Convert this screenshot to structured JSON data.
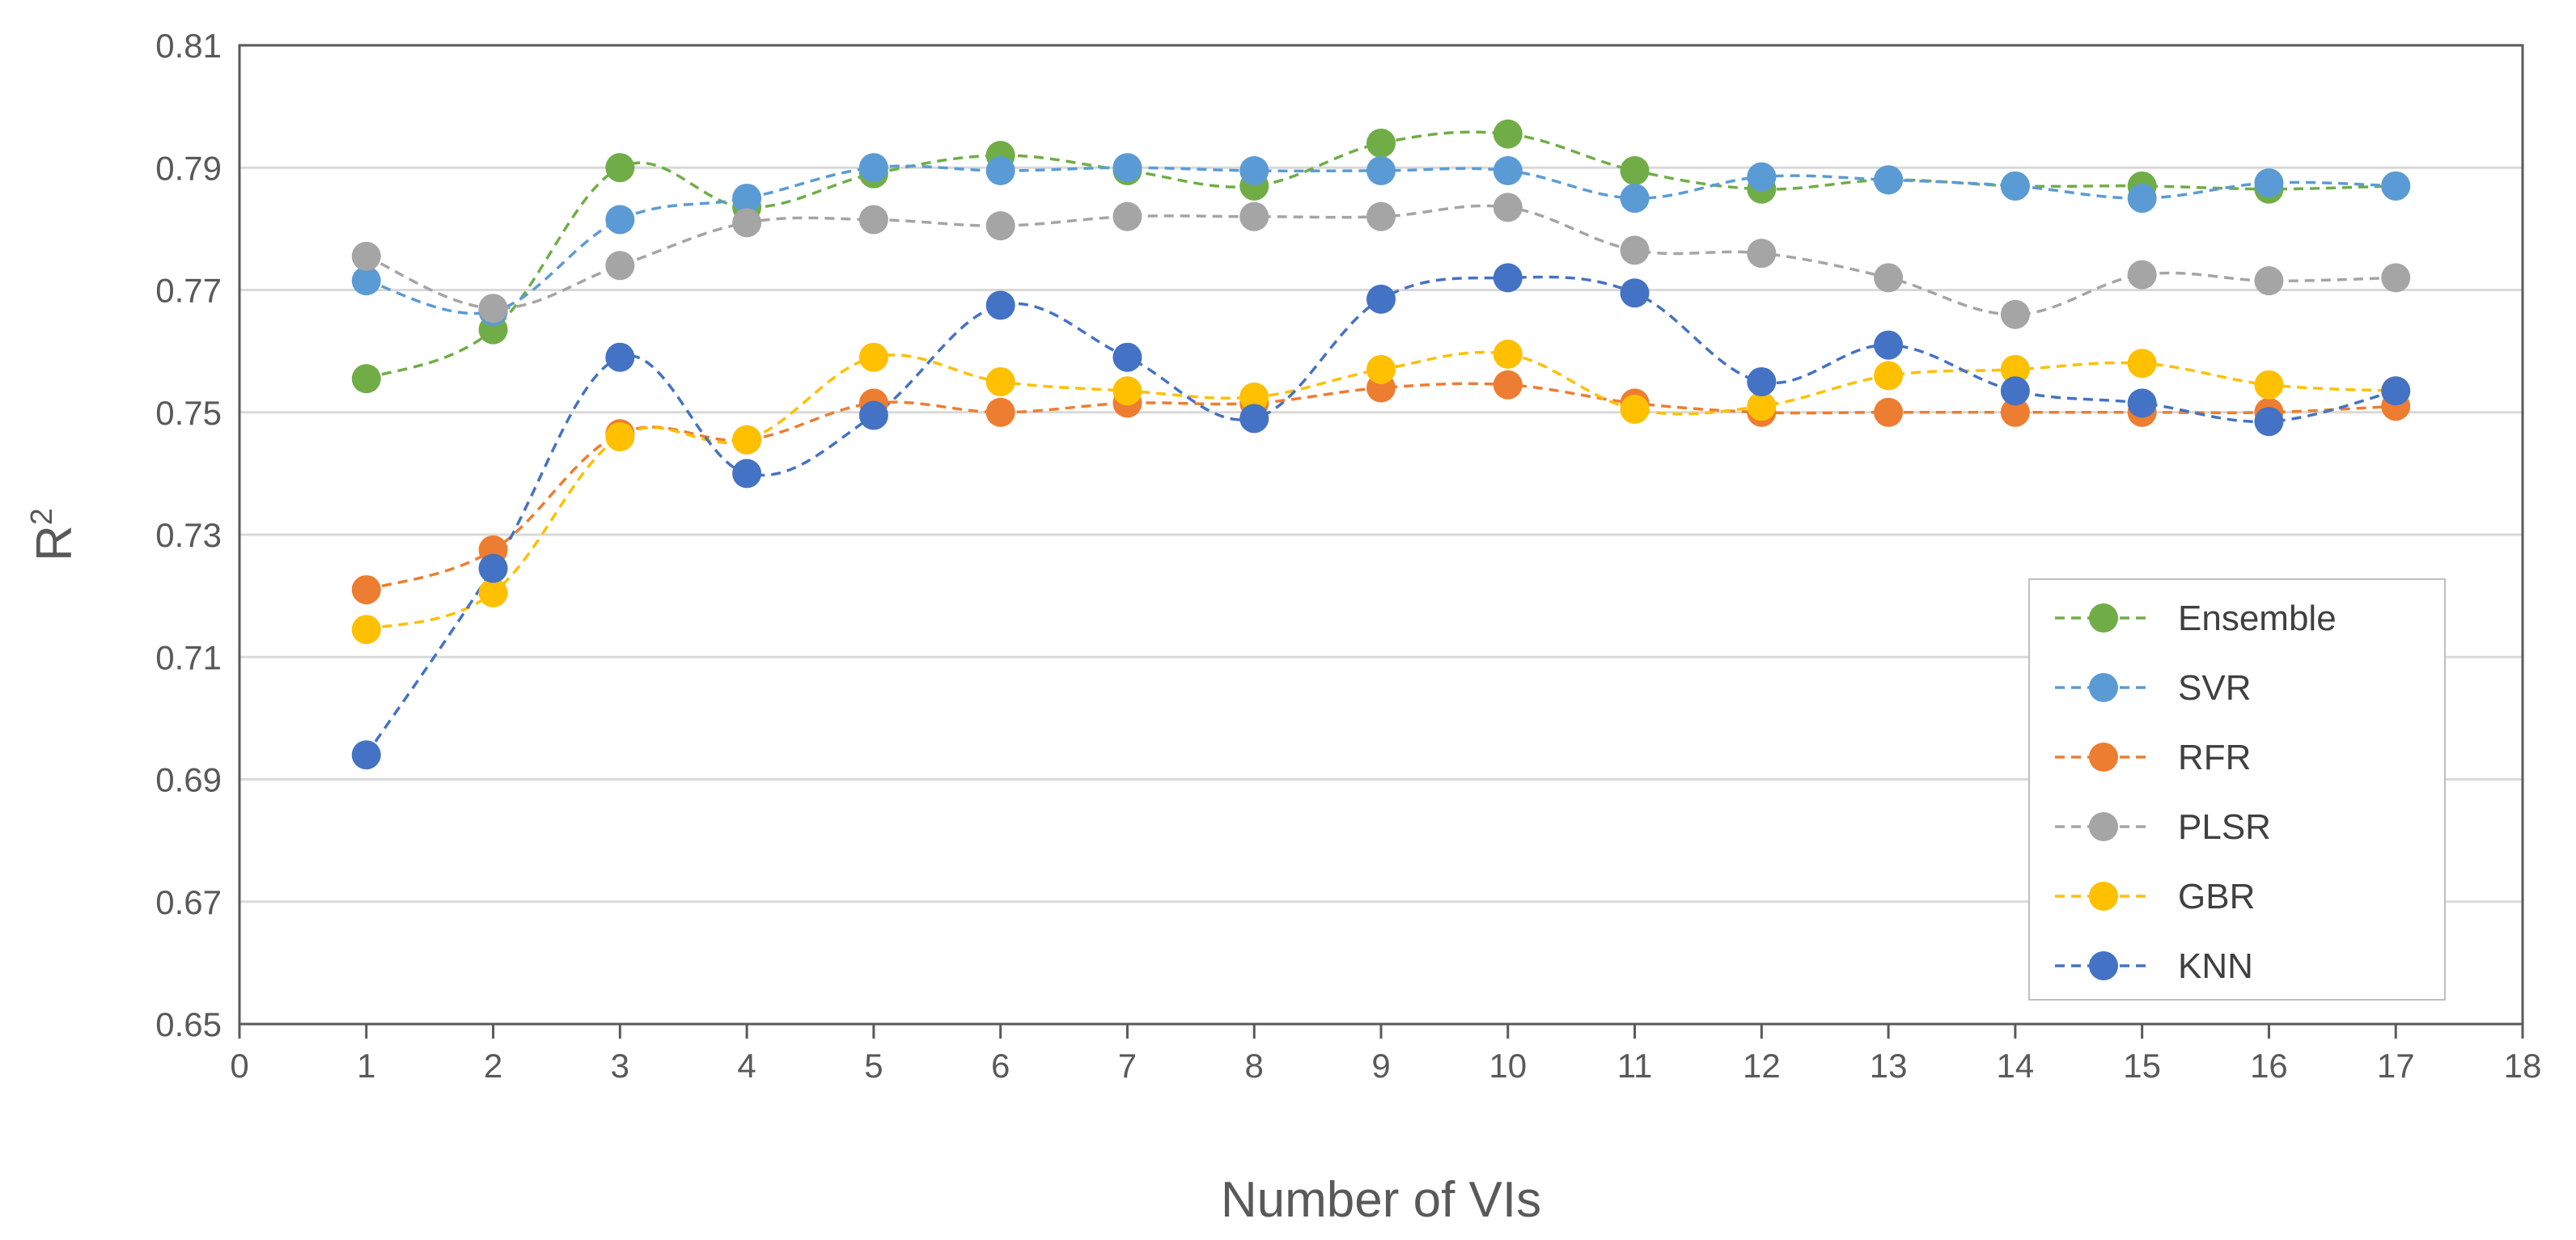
{
  "chart_data": {
    "type": "line",
    "title": "",
    "xlabel": "Number of VIs",
    "ylabel_main": "R",
    "ylabel_sup": "2",
    "xlim": [
      0,
      18
    ],
    "ylim": [
      0.65,
      0.81
    ],
    "xticks": [
      0,
      1,
      2,
      3,
      4,
      5,
      6,
      7,
      8,
      9,
      10,
      11,
      12,
      13,
      14,
      15,
      16,
      17,
      18
    ],
    "xtick_labels": [
      "0",
      "1",
      "2",
      "3",
      "4",
      "5",
      "6",
      "7",
      "8",
      "9",
      "10",
      "11",
      "12",
      "13",
      "14",
      "15",
      "16",
      "17",
      "18"
    ],
    "yticks": [
      0.65,
      0.67,
      0.69,
      0.71,
      0.73,
      0.75,
      0.77,
      0.79,
      0.81
    ],
    "ytick_labels": [
      "0.65",
      "0.67",
      "0.69",
      "0.71",
      "0.73",
      "0.75",
      "0.77",
      "0.79",
      "0.81"
    ],
    "grid": "horizontal",
    "legend_position": "bottom-right",
    "x": [
      1,
      2,
      3,
      4,
      5,
      6,
      7,
      8,
      9,
      10,
      11,
      12,
      13,
      14,
      15,
      16,
      17
    ],
    "series": [
      {
        "name": "Ensemble",
        "color": "#70AD47",
        "values": [
          0.7555,
          0.7635,
          0.79,
          0.7835,
          0.789,
          0.792,
          0.7895,
          0.787,
          0.794,
          0.7955,
          0.7895,
          0.7865,
          0.788,
          0.787,
          0.787,
          0.7865,
          0.787
        ]
      },
      {
        "name": "SVR",
        "color": "#5B9BD5",
        "values": [
          0.7715,
          0.7665,
          0.7815,
          0.785,
          0.79,
          0.7895,
          0.79,
          0.7895,
          0.7895,
          0.7895,
          0.785,
          0.7885,
          0.788,
          0.787,
          0.785,
          0.7875,
          0.787
        ]
      },
      {
        "name": "RFR",
        "color": "#ED7D31",
        "values": [
          0.721,
          0.7275,
          0.7465,
          0.7455,
          0.7515,
          0.75,
          0.7515,
          0.7515,
          0.754,
          0.7545,
          0.7515,
          0.75,
          0.75,
          0.75,
          0.75,
          0.75,
          0.751
        ]
      },
      {
        "name": "PLSR",
        "color": "#A5A5A5",
        "values": [
          0.7755,
          0.767,
          0.774,
          0.781,
          0.7815,
          0.7805,
          0.782,
          0.782,
          0.782,
          0.7835,
          0.7765,
          0.776,
          0.772,
          0.766,
          0.7725,
          0.7715,
          0.772
        ]
      },
      {
        "name": "GBR",
        "color": "#FFC000",
        "values": [
          0.7145,
          0.7205,
          0.746,
          0.7455,
          0.759,
          0.755,
          0.7535,
          0.7525,
          0.757,
          0.7595,
          0.7505,
          0.751,
          0.756,
          0.757,
          0.758,
          0.7545,
          0.7535
        ]
      },
      {
        "name": "KNN",
        "color": "#4472C4",
        "values": [
          0.694,
          0.7245,
          0.759,
          0.74,
          0.7495,
          0.7675,
          0.759,
          0.749,
          0.7685,
          0.772,
          0.7695,
          0.755,
          0.761,
          0.7535,
          0.7515,
          0.7485,
          0.7535
        ]
      }
    ]
  }
}
